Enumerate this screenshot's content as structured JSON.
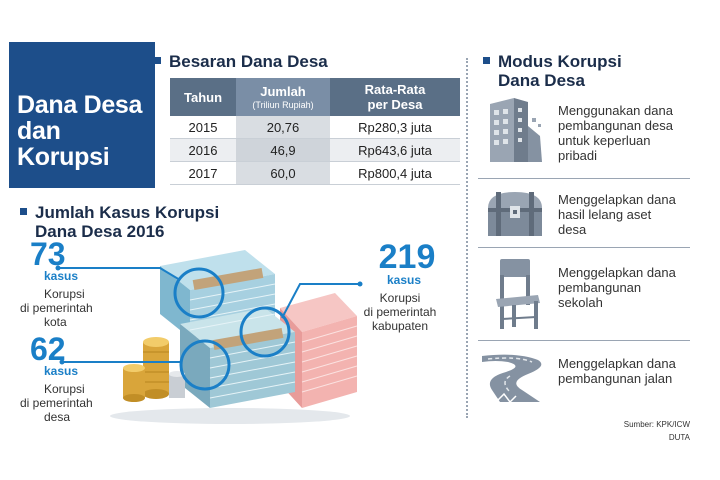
{
  "title": {
    "line1": "Dana Desa",
    "line2": "dan",
    "line3": "Korupsi"
  },
  "besaran": {
    "heading": "Besaran Dana Desa",
    "table": {
      "col_tahun": "Tahun",
      "col_jumlah": "Jumlah",
      "col_jumlah_sub": "(Triliun Rupiah)",
      "col_rata_line1": "Rata-Rata",
      "col_rata_line2": "per Desa",
      "rows": [
        {
          "tahun": "2015",
          "jumlah": "20,76",
          "rata": "Rp280,3 juta"
        },
        {
          "tahun": "2016",
          "jumlah": "46,9",
          "rata": "Rp643,6 juta"
        },
        {
          "tahun": "2017",
          "jumlah": "60,0",
          "rata": "Rp800,4 juta"
        }
      ]
    }
  },
  "kasus": {
    "heading_line1": "Jumlah Kasus Korupsi",
    "heading_line2": "Dana Desa 2016",
    "items": [
      {
        "number": "73",
        "unit": "kasus",
        "desc_line1": "Korupsi",
        "desc_line2": "di pemerintah",
        "desc_line3": "kota"
      },
      {
        "number": "62",
        "unit": "kasus",
        "desc_line1": "Korupsi",
        "desc_line2": "di pemerintah",
        "desc_line3": "desa"
      },
      {
        "number": "219",
        "unit": "kasus",
        "desc_line1": "Korupsi",
        "desc_line2": "di pemerintah",
        "desc_line3": "kabupaten"
      }
    ]
  },
  "modus": {
    "heading_line1": "Modus Korupsi",
    "heading_line2": "Dana Desa",
    "items": [
      {
        "icon": "crumbling-building-icon",
        "lines": [
          "Menggunakan dana",
          "pembangunan desa",
          "untuk keperluan",
          "pribadi"
        ]
      },
      {
        "icon": "treasure-chest-icon",
        "lines": [
          "Menggelapkan dana",
          "hasil lelang aset",
          "desa"
        ]
      },
      {
        "icon": "school-chair-icon",
        "lines": [
          "Menggelapkan dana",
          "pembangunan",
          "sekolah"
        ]
      },
      {
        "icon": "broken-road-icon",
        "lines": [
          "Menggelapkan dana",
          "pembangunan jalan"
        ]
      }
    ]
  },
  "source": {
    "line1": "Sumber: KPK/ICW",
    "line2": "DUTA"
  },
  "colors": {
    "brand_navy": "#1d4e8a",
    "accent_blue": "#1a7fc7",
    "table_header": "#5a6f86"
  }
}
